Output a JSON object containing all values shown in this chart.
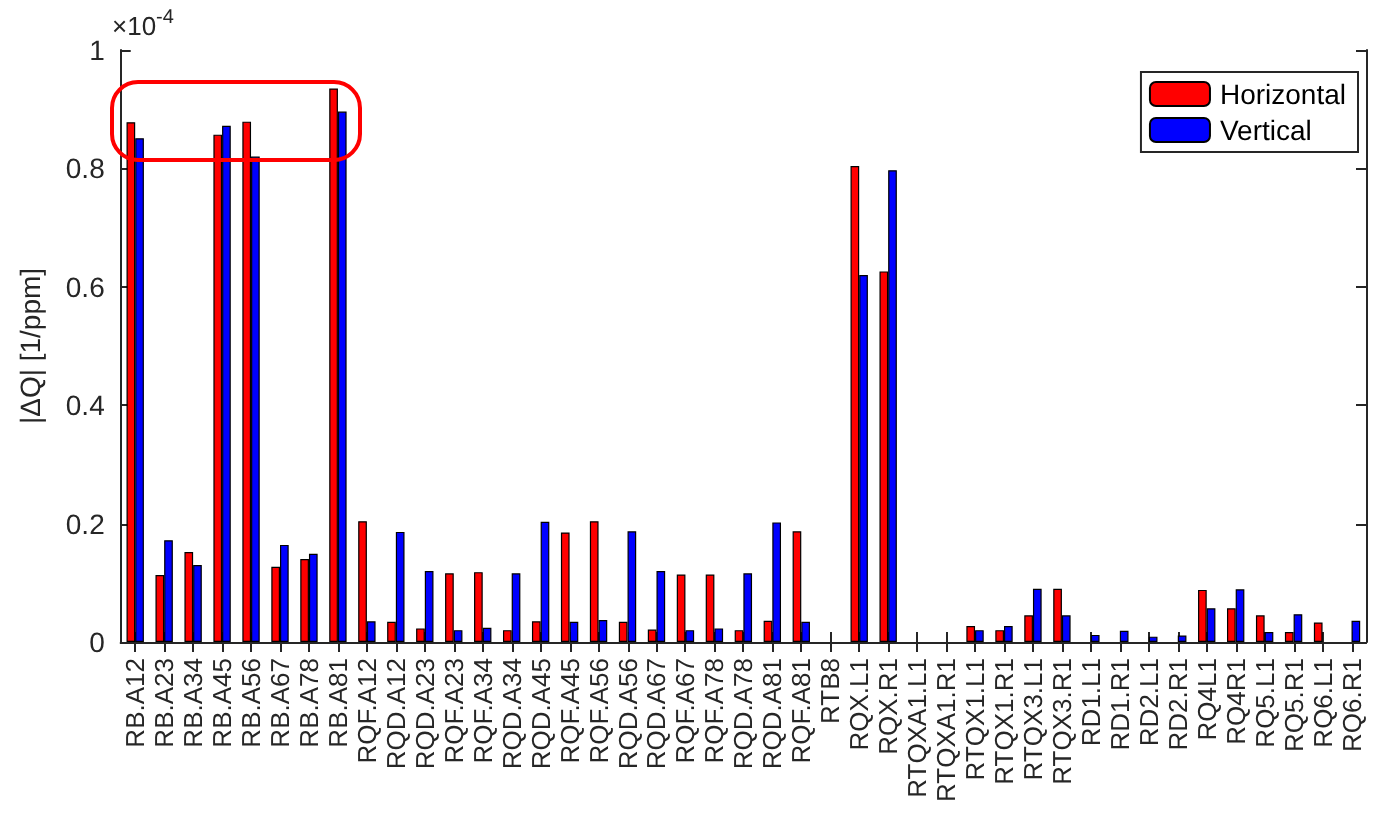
{
  "chart_data": {
    "type": "bar",
    "ylabel": "|ΔQ| [1/ppm]",
    "annotations": [
      "×10$^{-4}$"
    ],
    "categories": [
      "RB.A12",
      "RB.A23",
      "RB.A34",
      "RB.A45",
      "RB.A56",
      "RB.A67",
      "RB.A78",
      "RB.A81",
      "RQF.A12",
      "RQD.A12",
      "RQD.A23",
      "RQF.A23",
      "RQF.A34",
      "RQD.A34",
      "RQD.A45",
      "RQF.A45",
      "RQF.A56",
      "RQD.A56",
      "RQD.A67",
      "RQF.A67",
      "RQF.A78",
      "RQD.A78",
      "RQD.A81",
      "RQF.A81",
      "RTB8",
      "RQX.L1",
      "RQX.R1",
      "RTQXA1.L1",
      "RTQXA1.R1",
      "RTQX1.L1",
      "RTQX1.R1",
      "RTQX3.L1",
      "RTQX3.R1",
      "RD1.L1",
      "RD1.R1",
      "RD2.L1",
      "RD2.R1",
      "RQ4L1",
      "RQ4R1",
      "RQ5.L1",
      "RQ5.R1",
      "RQ6.L1",
      "RQ6.R1"
    ],
    "series": [
      {
        "name": "Horizontal",
        "color": "#ff0000",
        "values": [
          0.878,
          0.113,
          0.152,
          0.857,
          0.879,
          0.127,
          0.14,
          0.935,
          0.204,
          0.034,
          0.023,
          0.116,
          0.118,
          0.02,
          0.035,
          0.185,
          0.204,
          0.034,
          0.021,
          0.114,
          0.114,
          0.02,
          0.036,
          0.187,
          0,
          0.804,
          0.626,
          0,
          0,
          0.027,
          0.02,
          0.045,
          0.09,
          0,
          0,
          0,
          0,
          0.088,
          0.057,
          0.045,
          0.017,
          0.033,
          0
        ]
      },
      {
        "name": "Vertical",
        "color": "#0000ff",
        "values": [
          0.851,
          0.172,
          0.13,
          0.872,
          0.82,
          0.164,
          0.149,
          0.896,
          0.035,
          0.186,
          0.12,
          0.02,
          0.024,
          0.116,
          0.203,
          0.034,
          0.037,
          0.187,
          0.12,
          0.02,
          0.023,
          0.116,
          0.202,
          0.034,
          0,
          0.62,
          0.797,
          0,
          0,
          0.02,
          0.027,
          0.09,
          0.045,
          0.012,
          0.019,
          0.009,
          0.011,
          0.057,
          0.089,
          0.017,
          0.047,
          0,
          0.036
        ]
      }
    ],
    "ylim": [
      0,
      1
    ],
    "yticks": [
      0,
      0.2,
      0.4,
      0.6,
      0.8,
      1
    ],
    "grid": false,
    "legend": "top right"
  }
}
